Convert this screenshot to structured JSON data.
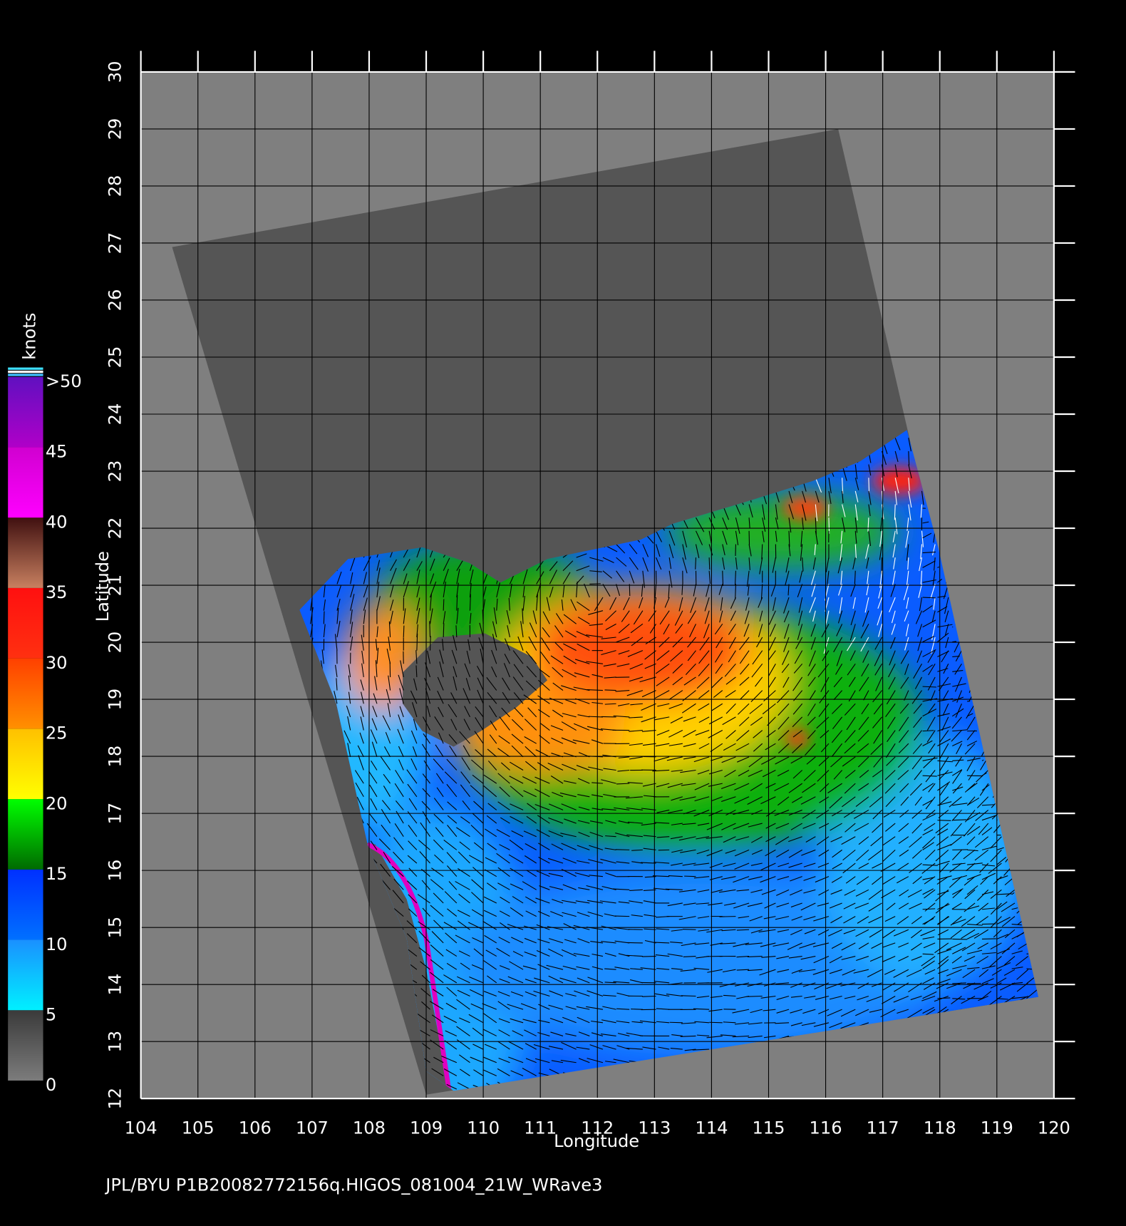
{
  "map": {
    "xlim": [
      104,
      120
    ],
    "ylim": [
      12,
      30
    ],
    "xticks": [
      104,
      105,
      106,
      107,
      108,
      109,
      110,
      111,
      112,
      113,
      114,
      115,
      116,
      117,
      118,
      119,
      120
    ],
    "yticks": [
      12,
      13,
      14,
      15,
      16,
      17,
      18,
      19,
      20,
      21,
      22,
      23,
      24,
      25,
      26,
      27,
      28,
      29,
      30
    ],
    "xlabel": "Longitude",
    "ylabel": "Latitude",
    "grid": true
  },
  "colorbar": {
    "label": "knots",
    "lim": [
      0,
      50
    ],
    "ticks": [
      0,
      5,
      10,
      15,
      20,
      25,
      30,
      35,
      40,
      45,
      {
        "value": 50,
        "label": ">50"
      }
    ],
    "colors": [
      [
        "#7c7c7c",
        "#3a3a3a"
      ],
      [
        "#00f0ff",
        "#1a90ff"
      ],
      [
        "#0070ff",
        "#0030ff"
      ],
      [
        "#006a00",
        "#00ff00"
      ],
      [
        "#ffff00",
        "#ffc000"
      ],
      [
        "#ff9000",
        "#ff4000"
      ],
      [
        "#ff3010",
        "#ff1010"
      ],
      [
        "#c88060",
        "#401010"
      ],
      [
        "#ff00ff",
        "#d000d0"
      ],
      [
        "#b000c8",
        "#6010c0"
      ]
    ]
  },
  "footer": "JPL/BYU  P1B20082772156q.HIGOS_081004_21W_WRave3"
}
